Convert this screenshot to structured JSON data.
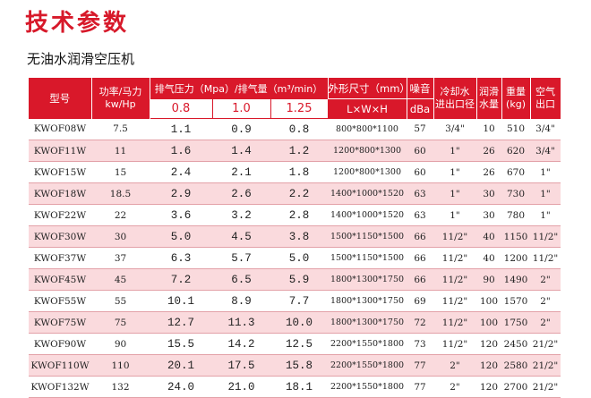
{
  "page": {
    "title": "技术参数",
    "subtitle": "无油水润滑空压机"
  },
  "table": {
    "headers": {
      "model": "型号",
      "power": [
        "功率/马力",
        "kw/Hp"
      ],
      "pressure_flow": "排气压力（Mpa）/排气量（m³/min）",
      "pressures": [
        "0.8",
        "1.0",
        "1.25"
      ],
      "dimensions": [
        "外形尺寸（mm）",
        "L×W×H"
      ],
      "noise": [
        "噪音",
        "dBa"
      ],
      "cooling_water": [
        "冷却水",
        "进出口径"
      ],
      "lube_water": [
        "润滑",
        "水量"
      ],
      "weight": [
        "重量",
        "(kg)"
      ],
      "air_outlet": [
        "空气",
        "出口"
      ]
    },
    "rows": [
      {
        "model": "KWOF08W",
        "power": "7.5",
        "p08": "1.1",
        "p10": "0.9",
        "p125": "0.8",
        "dim": "800*800*1100",
        "noise": "57",
        "cool": "3/4\"",
        "lube": "10",
        "weight": "510",
        "outlet": "3/4\""
      },
      {
        "model": "KWOF11W",
        "power": "11",
        "p08": "1.6",
        "p10": "1.4",
        "p125": "1.2",
        "dim": "1200*800*1300",
        "noise": "60",
        "cool": "1\"",
        "lube": "26",
        "weight": "620",
        "outlet": "3/4\""
      },
      {
        "model": "KWOF15W",
        "power": "15",
        "p08": "2.4",
        "p10": "2.1",
        "p125": "1.8",
        "dim": "1200*800*1300",
        "noise": "60",
        "cool": "1\"",
        "lube": "26",
        "weight": "670",
        "outlet": "1\""
      },
      {
        "model": "KWOF18W",
        "power": "18.5",
        "p08": "2.9",
        "p10": "2.6",
        "p125": "2.2",
        "dim": "1400*1000*1520",
        "noise": "63",
        "cool": "1\"",
        "lube": "30",
        "weight": "730",
        "outlet": "1\""
      },
      {
        "model": "KWOF22W",
        "power": "22",
        "p08": "3.6",
        "p10": "3.2",
        "p125": "2.8",
        "dim": "1400*1000*1520",
        "noise": "63",
        "cool": "1\"",
        "lube": "30",
        "weight": "780",
        "outlet": "1\""
      },
      {
        "model": "KWOF30W",
        "power": "30",
        "p08": "5.0",
        "p10": "4.5",
        "p125": "3.8",
        "dim": "1500*1150*1500",
        "noise": "66",
        "cool": "11/2\"",
        "lube": "40",
        "weight": "1150",
        "outlet": "11/2\""
      },
      {
        "model": "KWOF37W",
        "power": "37",
        "p08": "6.3",
        "p10": "5.7",
        "p125": "5.0",
        "dim": "1500*1150*1500",
        "noise": "66",
        "cool": "11/2\"",
        "lube": "40",
        "weight": "1200",
        "outlet": "11/2\""
      },
      {
        "model": "KWOF45W",
        "power": "45",
        "p08": "7.2",
        "p10": "6.5",
        "p125": "5.9",
        "dim": "1800*1300*1750",
        "noise": "66",
        "cool": "11/2\"",
        "lube": "90",
        "weight": "1490",
        "outlet": "2\""
      },
      {
        "model": "KWOF55W",
        "power": "55",
        "p08": "10.1",
        "p10": "8.9",
        "p125": "7.7",
        "dim": "1800*1300*1750",
        "noise": "69",
        "cool": "11/2\"",
        "lube": "100",
        "weight": "1570",
        "outlet": "2\""
      },
      {
        "model": "KWOF75W",
        "power": "75",
        "p08": "12.7",
        "p10": "11.3",
        "p125": "10.0",
        "dim": "1800*1300*1750",
        "noise": "72",
        "cool": "11/2\"",
        "lube": "100",
        "weight": "1750",
        "outlet": "2\""
      },
      {
        "model": "KWOF90W",
        "power": "90",
        "p08": "15.5",
        "p10": "14.2",
        "p125": "12.5",
        "dim": "2200*1550*1800",
        "noise": "73",
        "cool": "11/2\"",
        "lube": "120",
        "weight": "2450",
        "outlet": "21/2\""
      },
      {
        "model": "KWOF110W",
        "power": "110",
        "p08": "20.1",
        "p10": "17.5",
        "p125": "15.8",
        "dim": "2200*1550*1800",
        "noise": "77",
        "cool": "2\"",
        "lube": "120",
        "weight": "2580",
        "outlet": "21/2\""
      },
      {
        "model": "KWOF132W",
        "power": "132",
        "p08": "24.0",
        "p10": "21.0",
        "p125": "18.1",
        "dim": "2200*1550*1800",
        "noise": "77",
        "cool": "2\"",
        "lube": "120",
        "weight": "2700",
        "outlet": "21/2\""
      }
    ]
  }
}
